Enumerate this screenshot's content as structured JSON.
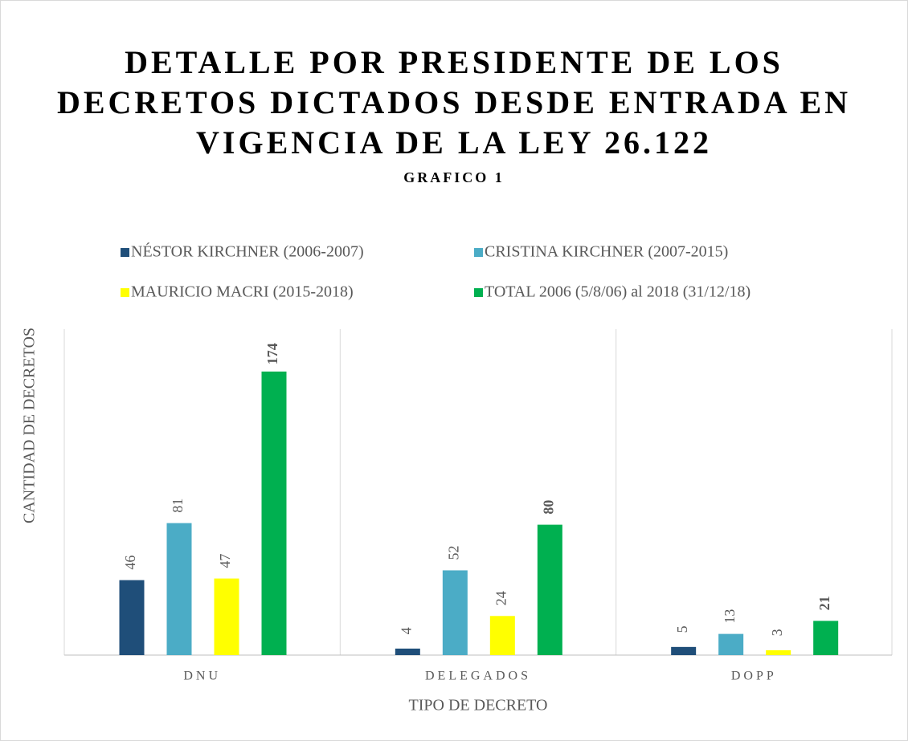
{
  "chart_data": {
    "type": "bar",
    "title": [
      "DETALLE POR PRESIDENTE DE LOS",
      "DECRETOS DICTADOS DESDE ENTRADA EN",
      "VIGENCIA DE LA LEY 26.122"
    ],
    "subtitle": "GRAFICO 1",
    "x_label": "TIPO DE DECRETO",
    "y_label": "CANTIDAD DE DECRETOS",
    "categories": [
      "DNU",
      "DELEGADOS",
      "DOPP"
    ],
    "series": [
      {
        "name": "NÉSTOR KIRCHNER (2006-2007)",
        "color": "#1f4e79",
        "values": [
          46,
          4,
          5
        ]
      },
      {
        "name": "CRISTINA KIRCHNER (2007-2015)",
        "color": "#4bacc6",
        "values": [
          81,
          52,
          13
        ]
      },
      {
        "name": "MAURICIO MACRI (2015-2018)",
        "color": "#ffff00",
        "values": [
          47,
          24,
          3
        ]
      },
      {
        "name": "TOTAL 2006 (5/8/06) al 2018 (31/12/18)",
        "color": "#00b050",
        "values": [
          174,
          80,
          21
        ],
        "label_bold": true
      }
    ],
    "ylim": [
      0,
      200
    ],
    "legend": "top"
  }
}
